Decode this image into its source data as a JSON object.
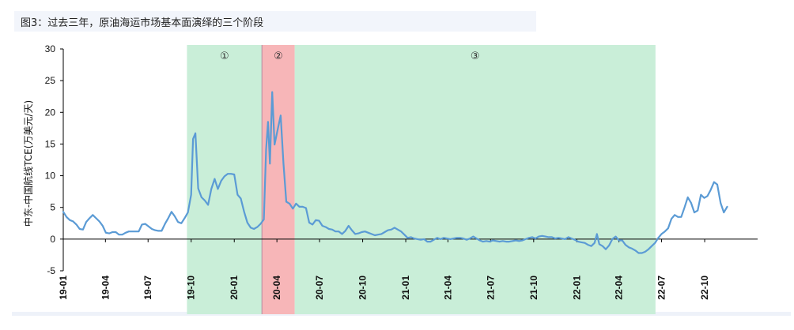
{
  "title": "图3：过去三年，原油海运市场基本面演绎的三个阶段",
  "chart_data": {
    "type": "line",
    "title": "图3：过去三年，原油海运市场基本面演绎的三个阶段",
    "ylabel": "中东-中国航线TCE(万美元/天)",
    "xlabel": "",
    "ylim": [
      -5,
      30
    ],
    "yticks": [
      -5,
      0,
      5,
      10,
      15,
      20,
      25,
      30
    ],
    "xlim": [
      "2019-01-01",
      "2023-01-22"
    ],
    "x_tick_labels": [
      {
        "label": "19-01",
        "date": "2019-01-01"
      },
      {
        "label": "19-04",
        "date": "2019-04-01"
      },
      {
        "label": "19-07",
        "date": "2019-07-01"
      },
      {
        "label": "19-10",
        "date": "2019-10-01"
      },
      {
        "label": "20-01",
        "date": "2020-01-01"
      },
      {
        "label": "20-04",
        "date": "2020-04-01"
      },
      {
        "label": "20-07",
        "date": "2020-07-01"
      },
      {
        "label": "20-10",
        "date": "2020-10-01"
      },
      {
        "label": "21-01",
        "date": "2021-01-01"
      },
      {
        "label": "21-04",
        "date": "2021-04-01"
      },
      {
        "label": "21-07",
        "date": "2021-07-01"
      },
      {
        "label": "21-10",
        "date": "2021-10-01"
      },
      {
        "label": "22-01",
        "date": "2022-01-01"
      },
      {
        "label": "22-04",
        "date": "2022-04-01"
      },
      {
        "label": "22-07",
        "date": "2022-07-01"
      },
      {
        "label": "22-10",
        "date": "2022-10-01"
      }
    ],
    "grid": false,
    "line_color": "#5b9bd5",
    "stages": [
      {
        "label": "①",
        "start": "2019-09-22",
        "end": "2020-02-29",
        "color": "#c9eed8"
      },
      {
        "label": "②",
        "start": "2020-02-29",
        "end": "2020-05-09",
        "color": "#f7b6b8"
      },
      {
        "label": "③",
        "start": "2020-05-09",
        "end": "2022-06-18",
        "color": "#c9eed8"
      }
    ],
    "series": [
      {
        "values": [
          {
            "x": "2019-01-01",
            "y": 4.3
          },
          {
            "x": "2019-01-08",
            "y": 3.5
          },
          {
            "x": "2019-01-15",
            "y": 3.0
          },
          {
            "x": "2019-01-22",
            "y": 2.8
          },
          {
            "x": "2019-01-29",
            "y": 2.3
          },
          {
            "x": "2019-02-05",
            "y": 1.6
          },
          {
            "x": "2019-02-12",
            "y": 1.5
          },
          {
            "x": "2019-02-19",
            "y": 2.7
          },
          {
            "x": "2019-02-26",
            "y": 3.3
          },
          {
            "x": "2019-03-05",
            "y": 3.8
          },
          {
            "x": "2019-03-12",
            "y": 3.3
          },
          {
            "x": "2019-03-19",
            "y": 2.8
          },
          {
            "x": "2019-03-26",
            "y": 2.1
          },
          {
            "x": "2019-04-02",
            "y": 1.0
          },
          {
            "x": "2019-04-09",
            "y": 0.9
          },
          {
            "x": "2019-04-16",
            "y": 1.1
          },
          {
            "x": "2019-04-23",
            "y": 1.1
          },
          {
            "x": "2019-04-30",
            "y": 0.7
          },
          {
            "x": "2019-05-07",
            "y": 0.7
          },
          {
            "x": "2019-05-14",
            "y": 1.0
          },
          {
            "x": "2019-05-21",
            "y": 1.2
          },
          {
            "x": "2019-05-28",
            "y": 1.2
          },
          {
            "x": "2019-06-04",
            "y": 1.2
          },
          {
            "x": "2019-06-11",
            "y": 1.2
          },
          {
            "x": "2019-06-18",
            "y": 2.3
          },
          {
            "x": "2019-06-25",
            "y": 2.4
          },
          {
            "x": "2019-07-02",
            "y": 2.0
          },
          {
            "x": "2019-07-09",
            "y": 1.6
          },
          {
            "x": "2019-07-16",
            "y": 1.4
          },
          {
            "x": "2019-07-23",
            "y": 1.3
          },
          {
            "x": "2019-07-30",
            "y": 1.3
          },
          {
            "x": "2019-08-06",
            "y": 2.4
          },
          {
            "x": "2019-08-13",
            "y": 3.3
          },
          {
            "x": "2019-08-20",
            "y": 4.3
          },
          {
            "x": "2019-08-27",
            "y": 3.6
          },
          {
            "x": "2019-09-03",
            "y": 2.7
          },
          {
            "x": "2019-09-10",
            "y": 2.5
          },
          {
            "x": "2019-09-17",
            "y": 3.3
          },
          {
            "x": "2019-09-24",
            "y": 4.2
          },
          {
            "x": "2019-10-01",
            "y": 7.0
          },
          {
            "x": "2019-10-05",
            "y": 15.8
          },
          {
            "x": "2019-10-10",
            "y": 16.7
          },
          {
            "x": "2019-10-16",
            "y": 8.0
          },
          {
            "x": "2019-10-23",
            "y": 6.6
          },
          {
            "x": "2019-10-30",
            "y": 6.1
          },
          {
            "x": "2019-11-06",
            "y": 5.4
          },
          {
            "x": "2019-11-13",
            "y": 7.9
          },
          {
            "x": "2019-11-20",
            "y": 9.5
          },
          {
            "x": "2019-11-27",
            "y": 7.9
          },
          {
            "x": "2019-12-04",
            "y": 9.2
          },
          {
            "x": "2019-12-11",
            "y": 9.9
          },
          {
            "x": "2019-12-18",
            "y": 10.3
          },
          {
            "x": "2019-12-25",
            "y": 10.3
          },
          {
            "x": "2020-01-01",
            "y": 10.2
          },
          {
            "x": "2020-01-08",
            "y": 7.0
          },
          {
            "x": "2020-01-15",
            "y": 6.4
          },
          {
            "x": "2020-01-22",
            "y": 4.3
          },
          {
            "x": "2020-01-29",
            "y": 2.6
          },
          {
            "x": "2020-02-05",
            "y": 1.8
          },
          {
            "x": "2020-02-12",
            "y": 1.6
          },
          {
            "x": "2020-02-19",
            "y": 1.9
          },
          {
            "x": "2020-02-26",
            "y": 2.4
          },
          {
            "x": "2020-03-04",
            "y": 3.1
          },
          {
            "x": "2020-03-09",
            "y": 14.2
          },
          {
            "x": "2020-03-13",
            "y": 18.5
          },
          {
            "x": "2020-03-17",
            "y": 11.9
          },
          {
            "x": "2020-03-22",
            "y": 23.2
          },
          {
            "x": "2020-03-27",
            "y": 14.9
          },
          {
            "x": "2020-04-03",
            "y": 17.4
          },
          {
            "x": "2020-04-09",
            "y": 19.5
          },
          {
            "x": "2020-04-15",
            "y": 12.0
          },
          {
            "x": "2020-04-21",
            "y": 5.9
          },
          {
            "x": "2020-04-28",
            "y": 5.6
          },
          {
            "x": "2020-05-05",
            "y": 4.8
          },
          {
            "x": "2020-05-12",
            "y": 5.6
          },
          {
            "x": "2020-05-19",
            "y": 5.1
          },
          {
            "x": "2020-05-26",
            "y": 5.1
          },
          {
            "x": "2020-06-02",
            "y": 4.9
          },
          {
            "x": "2020-06-09",
            "y": 2.6
          },
          {
            "x": "2020-06-16",
            "y": 2.3
          },
          {
            "x": "2020-06-23",
            "y": 3.0
          },
          {
            "x": "2020-06-30",
            "y": 2.9
          },
          {
            "x": "2020-07-07",
            "y": 2.1
          },
          {
            "x": "2020-07-14",
            "y": 1.9
          },
          {
            "x": "2020-07-21",
            "y": 1.6
          },
          {
            "x": "2020-07-28",
            "y": 1.5
          },
          {
            "x": "2020-08-04",
            "y": 1.2
          },
          {
            "x": "2020-08-11",
            "y": 1.2
          },
          {
            "x": "2020-08-18",
            "y": 0.8
          },
          {
            "x": "2020-08-25",
            "y": 1.3
          },
          {
            "x": "2020-09-01",
            "y": 2.1
          },
          {
            "x": "2020-09-08",
            "y": 1.4
          },
          {
            "x": "2020-09-15",
            "y": 0.8
          },
          {
            "x": "2020-09-22",
            "y": 0.9
          },
          {
            "x": "2020-09-29",
            "y": 1.1
          },
          {
            "x": "2020-10-06",
            "y": 1.2
          },
          {
            "x": "2020-10-13",
            "y": 1.0
          },
          {
            "x": "2020-10-20",
            "y": 0.8
          },
          {
            "x": "2020-10-27",
            "y": 0.6
          },
          {
            "x": "2020-11-03",
            "y": 0.7
          },
          {
            "x": "2020-11-10",
            "y": 0.8
          },
          {
            "x": "2020-11-17",
            "y": 1.1
          },
          {
            "x": "2020-11-24",
            "y": 1.4
          },
          {
            "x": "2020-12-01",
            "y": 1.5
          },
          {
            "x": "2020-12-08",
            "y": 1.8
          },
          {
            "x": "2020-12-15",
            "y": 1.5
          },
          {
            "x": "2020-12-22",
            "y": 1.2
          },
          {
            "x": "2020-12-29",
            "y": 0.7
          },
          {
            "x": "2021-01-05",
            "y": 0.2
          },
          {
            "x": "2021-01-12",
            "y": 0.3
          },
          {
            "x": "2021-01-19",
            "y": 0.1
          },
          {
            "x": "2021-01-26",
            "y": 0.0
          },
          {
            "x": "2021-02-02",
            "y": -0.1
          },
          {
            "x": "2021-02-09",
            "y": 0.0
          },
          {
            "x": "2021-02-16",
            "y": -0.4
          },
          {
            "x": "2021-02-23",
            "y": -0.4
          },
          {
            "x": "2021-03-02",
            "y": -0.1
          },
          {
            "x": "2021-03-09",
            "y": 0.2
          },
          {
            "x": "2021-03-16",
            "y": 0.0
          },
          {
            "x": "2021-03-23",
            "y": 0.2
          },
          {
            "x": "2021-03-30",
            "y": 0.1
          },
          {
            "x": "2021-04-06",
            "y": 0.0
          },
          {
            "x": "2021-04-13",
            "y": 0.1
          },
          {
            "x": "2021-04-20",
            "y": 0.2
          },
          {
            "x": "2021-04-27",
            "y": 0.2
          },
          {
            "x": "2021-05-04",
            "y": 0.1
          },
          {
            "x": "2021-05-11",
            "y": -0.1
          },
          {
            "x": "2021-05-18",
            "y": 0.1
          },
          {
            "x": "2021-05-25",
            "y": 0.4
          },
          {
            "x": "2021-06-01",
            "y": 0.1
          },
          {
            "x": "2021-06-08",
            "y": -0.2
          },
          {
            "x": "2021-06-15",
            "y": -0.4
          },
          {
            "x": "2021-06-22",
            "y": -0.3
          },
          {
            "x": "2021-06-29",
            "y": -0.4
          },
          {
            "x": "2021-07-06",
            "y": -0.2
          },
          {
            "x": "2021-07-13",
            "y": -0.3
          },
          {
            "x": "2021-07-20",
            "y": -0.4
          },
          {
            "x": "2021-07-27",
            "y": -0.3
          },
          {
            "x": "2021-08-03",
            "y": -0.4
          },
          {
            "x": "2021-08-10",
            "y": -0.4
          },
          {
            "x": "2021-08-17",
            "y": -0.3
          },
          {
            "x": "2021-08-24",
            "y": -0.2
          },
          {
            "x": "2021-08-31",
            "y": -0.3
          },
          {
            "x": "2021-09-07",
            "y": -0.2
          },
          {
            "x": "2021-09-14",
            "y": 0.0
          },
          {
            "x": "2021-09-21",
            "y": 0.2
          },
          {
            "x": "2021-09-28",
            "y": 0.3
          },
          {
            "x": "2021-10-05",
            "y": 0.1
          },
          {
            "x": "2021-10-12",
            "y": 0.4
          },
          {
            "x": "2021-10-19",
            "y": 0.5
          },
          {
            "x": "2021-10-26",
            "y": 0.4
          },
          {
            "x": "2021-11-02",
            "y": 0.3
          },
          {
            "x": "2021-11-09",
            "y": 0.3
          },
          {
            "x": "2021-11-16",
            "y": 0.1
          },
          {
            "x": "2021-11-23",
            "y": 0.2
          },
          {
            "x": "2021-11-30",
            "y": 0.1
          },
          {
            "x": "2021-12-07",
            "y": 0.0
          },
          {
            "x": "2021-12-14",
            "y": 0.3
          },
          {
            "x": "2021-12-21",
            "y": 0.1
          },
          {
            "x": "2021-12-28",
            "y": -0.1
          },
          {
            "x": "2022-01-04",
            "y": -0.4
          },
          {
            "x": "2022-01-11",
            "y": -0.5
          },
          {
            "x": "2022-01-18",
            "y": -0.6
          },
          {
            "x": "2022-01-25",
            "y": -0.9
          },
          {
            "x": "2022-02-01",
            "y": -1.1
          },
          {
            "x": "2022-02-08",
            "y": -0.6
          },
          {
            "x": "2022-02-13",
            "y": 0.8
          },
          {
            "x": "2022-02-18",
            "y": -0.8
          },
          {
            "x": "2022-02-25",
            "y": -1.1
          },
          {
            "x": "2022-03-04",
            "y": -1.6
          },
          {
            "x": "2022-03-11",
            "y": -1.0
          },
          {
            "x": "2022-03-18",
            "y": 0.0
          },
          {
            "x": "2022-03-25",
            "y": 0.4
          },
          {
            "x": "2022-04-01",
            "y": -0.2
          },
          {
            "x": "2022-04-08",
            "y": -0.2
          },
          {
            "x": "2022-04-15",
            "y": -0.9
          },
          {
            "x": "2022-04-22",
            "y": -1.3
          },
          {
            "x": "2022-04-29",
            "y": -1.5
          },
          {
            "x": "2022-05-06",
            "y": -1.8
          },
          {
            "x": "2022-05-13",
            "y": -2.2
          },
          {
            "x": "2022-05-20",
            "y": -2.2
          },
          {
            "x": "2022-05-27",
            "y": -2.0
          },
          {
            "x": "2022-06-03",
            "y": -1.6
          },
          {
            "x": "2022-06-10",
            "y": -1.1
          },
          {
            "x": "2022-06-17",
            "y": -0.6
          },
          {
            "x": "2022-06-24",
            "y": 0.2
          },
          {
            "x": "2022-07-01",
            "y": 0.8
          },
          {
            "x": "2022-07-08",
            "y": 1.2
          },
          {
            "x": "2022-07-15",
            "y": 1.7
          },
          {
            "x": "2022-07-22",
            "y": 3.2
          },
          {
            "x": "2022-07-29",
            "y": 3.8
          },
          {
            "x": "2022-08-05",
            "y": 3.5
          },
          {
            "x": "2022-08-12",
            "y": 3.5
          },
          {
            "x": "2022-08-19",
            "y": 5.0
          },
          {
            "x": "2022-08-26",
            "y": 6.6
          },
          {
            "x": "2022-09-02",
            "y": 5.7
          },
          {
            "x": "2022-09-09",
            "y": 4.2
          },
          {
            "x": "2022-09-16",
            "y": 4.5
          },
          {
            "x": "2022-09-23",
            "y": 7.0
          },
          {
            "x": "2022-09-30",
            "y": 6.5
          },
          {
            "x": "2022-10-07",
            "y": 6.8
          },
          {
            "x": "2022-10-14",
            "y": 7.8
          },
          {
            "x": "2022-10-21",
            "y": 9.0
          },
          {
            "x": "2022-10-28",
            "y": 8.6
          },
          {
            "x": "2022-11-04",
            "y": 5.7
          },
          {
            "x": "2022-11-11",
            "y": 4.2
          },
          {
            "x": "2022-11-18",
            "y": 5.1
          }
        ]
      }
    ]
  }
}
